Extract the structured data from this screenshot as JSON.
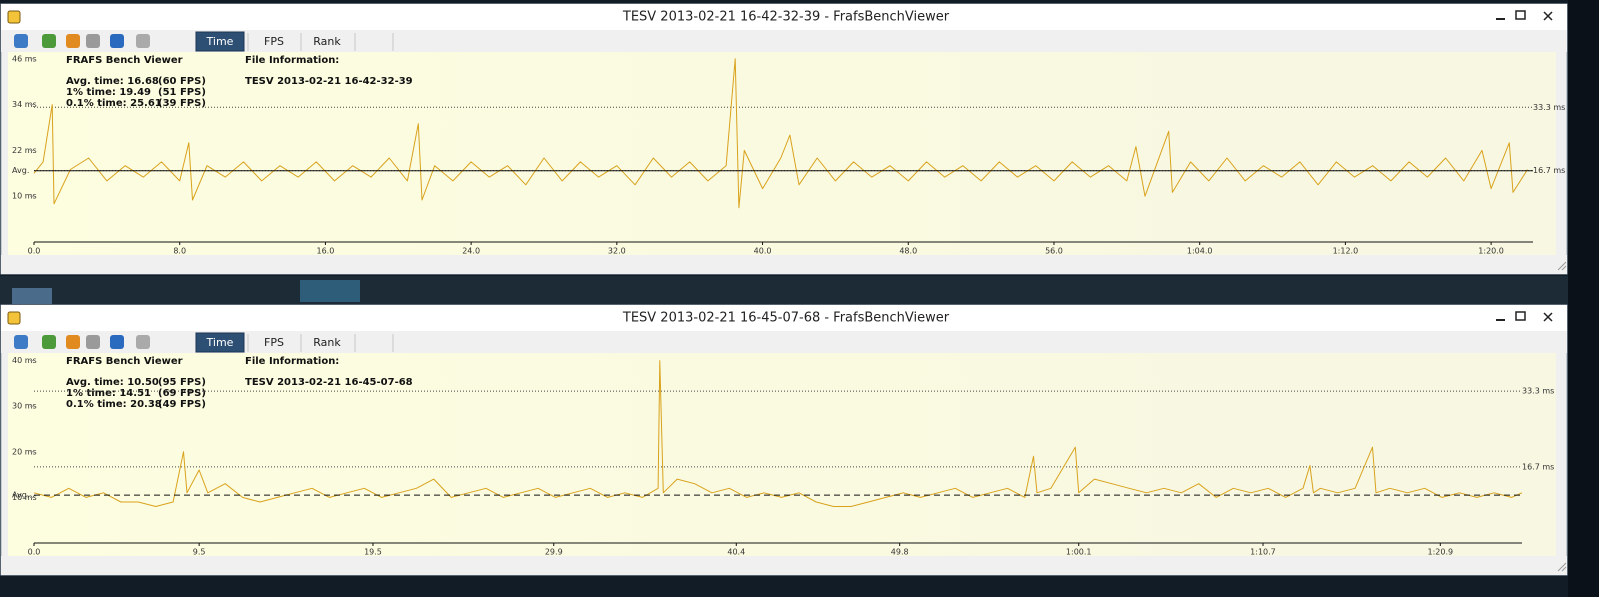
{
  "windows": [
    {
      "title": "TESV 2013-02-21 16-42-32-39 - FrafsBenchViewer",
      "toolbar": [
        "Time",
        "FPS",
        "Rank"
      ],
      "app_name": "FRAFS Bench Viewer",
      "stats": [
        {
          "label": "Avg. time: 16.68",
          "fps": "(60 FPS)"
        },
        {
          "label": "1% time: 19.49",
          "fps": "(51 FPS)"
        },
        {
          "label": "0.1% time: 25.61",
          "fps": "(39 FPS)"
        }
      ],
      "file_info_label": "File Information:",
      "file_name": "TESV 2013-02-21 16-42-32-39",
      "chart": {
        "type": "line",
        "color": "#d9a21c",
        "xlim": [
          0,
          82.3
        ],
        "ylim": [
          -2,
          47
        ],
        "yticks": [
          {
            "value": 46,
            "label": "46 ms"
          },
          {
            "value": 34,
            "label": "34 ms"
          },
          {
            "value": 22,
            "label": "22 ms"
          },
          {
            "value": 10,
            "label": "10 ms"
          }
        ],
        "average": {
          "value": 16.68,
          "label": "Avg."
        },
        "average_line": "solid",
        "ref_lines": [
          {
            "value": 33.3,
            "label": "33.3 ms"
          },
          {
            "value": 16.7,
            "label": "16.7 ms"
          }
        ],
        "xticks": [
          {
            "value": 0,
            "label": "0.0"
          },
          {
            "value": 8,
            "label": "8.0"
          },
          {
            "value": 16,
            "label": "16.0"
          },
          {
            "value": 24,
            "label": "24.0"
          },
          {
            "value": 32,
            "label": "32.0"
          },
          {
            "value": 40,
            "label": "40.0"
          },
          {
            "value": 48,
            "label": "48.0"
          },
          {
            "value": 56,
            "label": "56.0"
          },
          {
            "value": 64,
            "label": "1:04.0"
          },
          {
            "value": 72,
            "label": "1:12.0"
          },
          {
            "value": 80,
            "label": "1:20.0"
          }
        ],
        "x": [
          0,
          0.5,
          1.0,
          1.1,
          2,
          3,
          4,
          5,
          6,
          7,
          8,
          8.5,
          8.7,
          9.5,
          10.5,
          11.5,
          12.5,
          13.5,
          14.5,
          15.5,
          16.5,
          17.5,
          18.5,
          19.5,
          20.5,
          21.1,
          21.3,
          22,
          23,
          24,
          25,
          26,
          27,
          28,
          29,
          30,
          31,
          32,
          33,
          34,
          35,
          36,
          37,
          38,
          38.5,
          38.7,
          39,
          40,
          41,
          41.5,
          42,
          43,
          44,
          45,
          46,
          47,
          48,
          49,
          50,
          51,
          52,
          53,
          54,
          55,
          56,
          57,
          58,
          59,
          60,
          60.5,
          61,
          62.3,
          62.5,
          63.5,
          64.5,
          65.5,
          66.5,
          67.5,
          68.5,
          69.5,
          70.5,
          71.5,
          72.5,
          73.5,
          74.5,
          75.5,
          76.5,
          77.5,
          78.5,
          79.5,
          80,
          81,
          81.2,
          82
        ],
        "values": [
          16,
          19,
          34,
          8,
          17,
          20,
          14,
          18,
          15,
          19,
          14,
          24,
          9,
          18,
          15,
          19,
          14,
          18,
          15,
          19,
          14,
          18,
          15,
          20,
          14,
          29,
          9,
          18,
          14,
          19,
          15,
          18,
          13,
          20,
          14,
          19,
          15,
          18,
          13,
          20,
          15,
          19,
          14,
          18,
          46,
          7,
          22,
          12,
          20,
          26,
          13,
          20,
          14,
          19,
          15,
          18,
          14,
          19,
          15,
          18,
          14,
          19,
          15,
          18,
          14,
          19,
          15,
          18,
          14,
          23,
          10,
          27,
          11,
          19,
          14,
          20,
          14,
          18,
          15,
          19,
          13,
          19,
          15,
          18,
          14,
          19,
          15,
          20,
          14,
          22,
          12,
          24,
          11,
          17
        ]
      }
    },
    {
      "title": "TESV 2013-02-21 16-45-07-68 - FrafsBenchViewer",
      "toolbar": [
        "Time",
        "FPS",
        "Rank"
      ],
      "app_name": "FRAFS Bench Viewer",
      "stats": [
        {
          "label": "Avg. time: 10.50",
          "fps": "(95 FPS)"
        },
        {
          "label": "1% time: 14.51",
          "fps": "(69 FPS)"
        },
        {
          "label": "0.1% time: 20.38",
          "fps": "(49 FPS)"
        }
      ],
      "file_info_label": "File Information:",
      "file_name": "TESV 2013-02-21 16-45-07-68",
      "chart": {
        "type": "line",
        "color": "#d9a21c",
        "xlim": [
          0,
          85.6
        ],
        "ylim": [
          0,
          41
        ],
        "yticks": [
          {
            "value": 40,
            "label": "40 ms"
          },
          {
            "value": 30,
            "label": "30 ms"
          },
          {
            "value": 20,
            "label": "20 ms"
          },
          {
            "value": 10,
            "label": "10 ms"
          }
        ],
        "average": {
          "value": 10.5,
          "label": "Avg."
        },
        "average_line": "dashed",
        "ref_lines": [
          {
            "value": 33.3,
            "label": "33.3 ms"
          },
          {
            "value": 16.7,
            "label": "16.7 ms"
          }
        ],
        "xticks": [
          {
            "value": 0,
            "label": "0.0"
          },
          {
            "value": 9.5,
            "label": "9.5"
          },
          {
            "value": 19.5,
            "label": "19.5"
          },
          {
            "value": 29.9,
            "label": "29.9"
          },
          {
            "value": 40.4,
            "label": "40.4"
          },
          {
            "value": 49.8,
            "label": "49.8"
          },
          {
            "value": 60.1,
            "label": "1:00.1"
          },
          {
            "value": 70.7,
            "label": "1:10.7"
          },
          {
            "value": 80.9,
            "label": "1:20.9"
          }
        ],
        "x": [
          0,
          1,
          2,
          3,
          4,
          5,
          6,
          7,
          8,
          8.6,
          8.8,
          9.5,
          10,
          11,
          12,
          13,
          14,
          15,
          16,
          17,
          18,
          19,
          20,
          21,
          22,
          23,
          24,
          25,
          26,
          27,
          28,
          29,
          30,
          31,
          32,
          33,
          34,
          35,
          35.9,
          36,
          36.2,
          37,
          38,
          39,
          40,
          41,
          42,
          43,
          44,
          45,
          46,
          47,
          48,
          49,
          50,
          51,
          52,
          53,
          54,
          55,
          56,
          57,
          57.5,
          57.7,
          58.5,
          59.9,
          60.1,
          61,
          62,
          63,
          64,
          65,
          66,
          67,
          68,
          69,
          70,
          71,
          72,
          73,
          73.4,
          73.6,
          74,
          75,
          76,
          77,
          77.2,
          78,
          79,
          80,
          81,
          82,
          83,
          84,
          85,
          85.6
        ],
        "values": [
          11,
          10,
          12,
          10,
          11,
          9,
          9,
          8,
          9,
          20,
          11,
          16,
          11,
          13,
          10,
          9,
          10,
          11,
          12,
          10,
          11,
          12,
          10,
          11,
          12,
          14,
          10,
          11,
          12,
          10,
          11,
          12,
          10,
          11,
          12,
          10,
          11,
          10,
          12,
          40,
          11,
          14,
          13,
          11,
          12,
          10,
          11,
          10,
          11,
          9,
          8,
          8,
          9,
          10,
          11,
          10,
          11,
          12,
          10,
          11,
          12,
          10,
          19,
          11,
          12,
          21,
          11,
          14,
          13,
          12,
          11,
          12,
          11,
          13,
          10,
          12,
          11,
          12,
          10,
          12,
          17,
          11,
          12,
          11,
          12,
          21,
          11,
          12,
          11,
          12,
          10,
          11,
          10,
          11,
          10,
          11
        ]
      }
    }
  ]
}
